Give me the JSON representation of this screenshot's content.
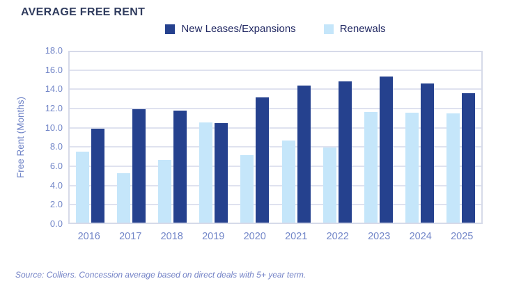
{
  "title": "AVERAGE FREE RENT",
  "chart_data": {
    "type": "bar",
    "title": "AVERAGE FREE RENT",
    "categories": [
      "2016",
      "2017",
      "2018",
      "2019",
      "2020",
      "2021",
      "2022",
      "2023",
      "2024",
      "2025"
    ],
    "series": [
      {
        "name": "New Leases/Expansions",
        "color": "#25418E",
        "values": [
          9.9,
          12.0,
          11.8,
          10.5,
          13.2,
          14.5,
          14.9,
          15.4,
          14.7,
          13.7
        ]
      },
      {
        "name": "Renewals",
        "color": "#C5E6FA",
        "values": [
          7.5,
          5.2,
          6.6,
          10.6,
          7.1,
          8.7,
          7.9,
          11.7,
          11.6,
          11.5
        ]
      }
    ],
    "xlabel": "",
    "ylabel": "Free Rent (Months)",
    "ylim": [
      0,
      18
    ],
    "ytick_step": 2,
    "yticks": [
      "18.0",
      "16.0",
      "14.0",
      "12.0",
      "10.0",
      "8.0",
      "6.0",
      "4.0",
      "2.0",
      "0.0"
    ],
    "grid": true,
    "legend_position": "top"
  },
  "footer": {
    "source_note": "Source: Colliers. Concession average based on direct deals with 5+ year term."
  },
  "colors": {
    "new_leases_bar": "#25418E",
    "renewals_bar": "#C5E6FA",
    "title_text": "#303C5E",
    "legend_text": "#232A64",
    "axis_text": "#7286C8",
    "gridline": "#DFE2EF",
    "plot_border": "#D6DAE9",
    "source_text": "#7382C6"
  }
}
